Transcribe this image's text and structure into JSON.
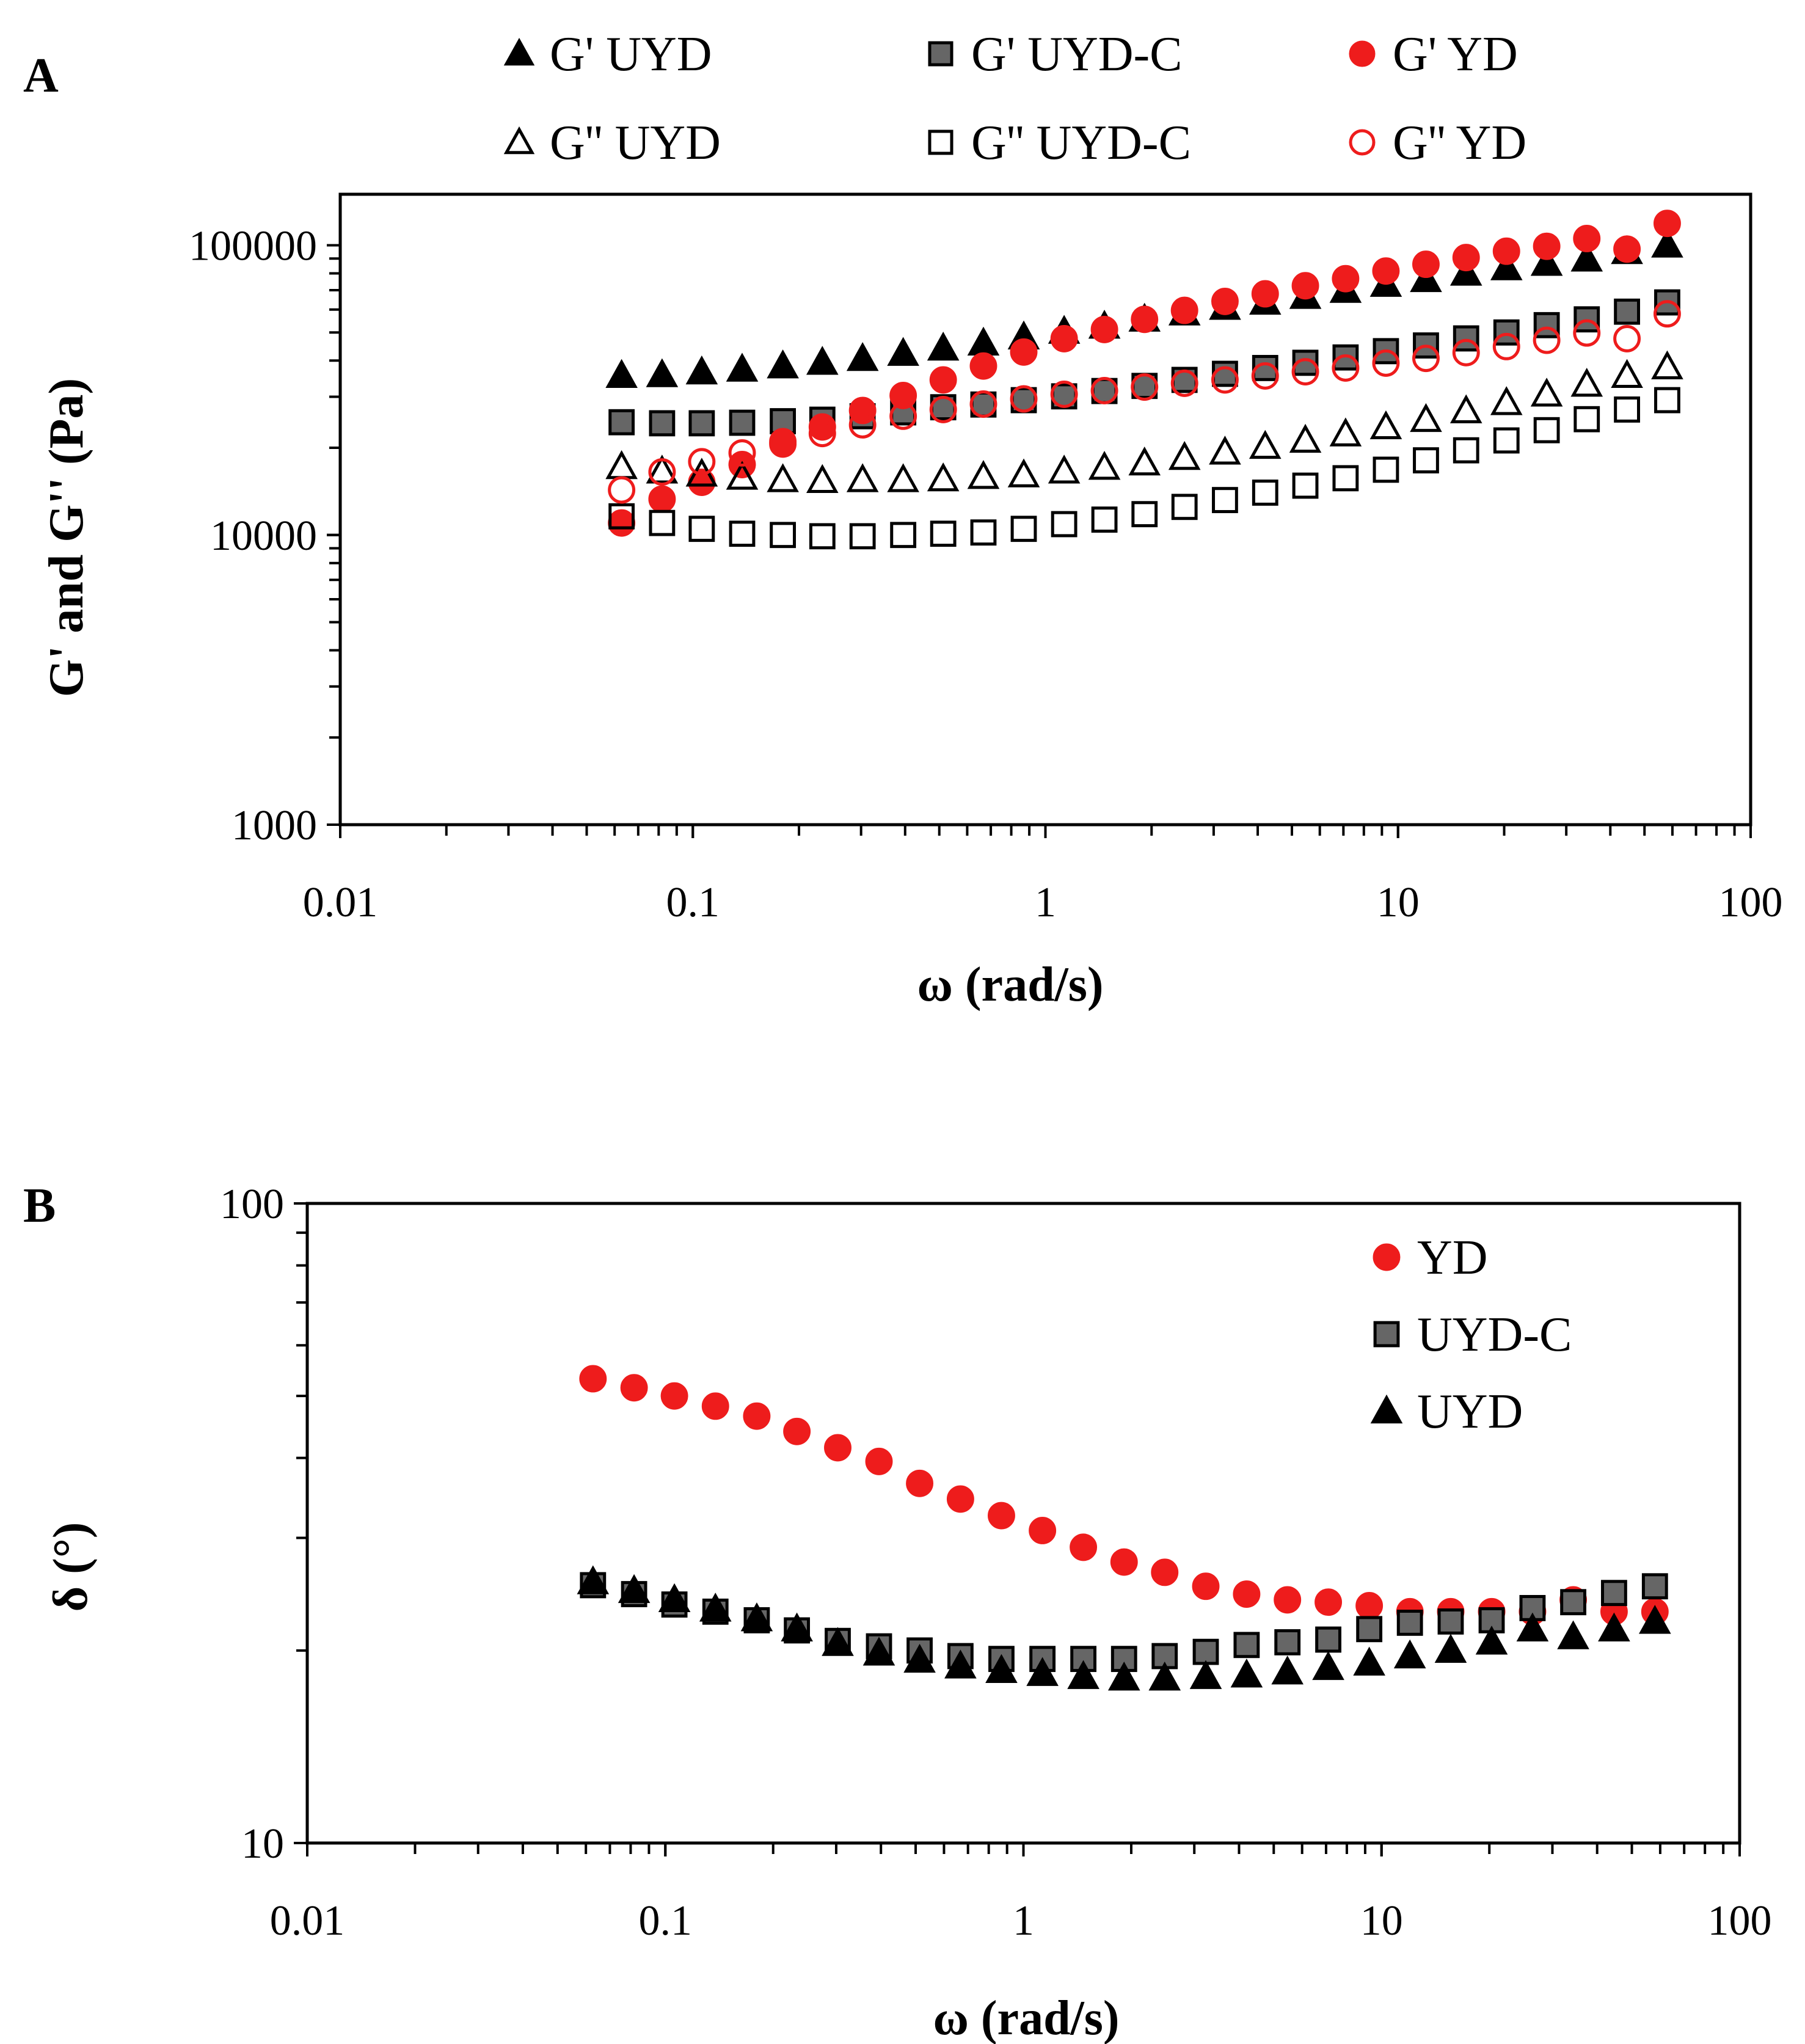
{
  "chart_data": [
    {
      "panel": "A",
      "type": "scatter",
      "xscale": "log",
      "yscale": "log",
      "xlabel": "ω (rad/s)",
      "ylabel": "G' and G'' (Pa)",
      "xlim": [
        0.01,
        100
      ],
      "ylim": [
        1000,
        150000
      ],
      "xticks": [
        "0.01",
        "0.1",
        "1",
        "10",
        "100"
      ],
      "yticks": [
        "1000",
        "10000",
        "100000"
      ],
      "legend_position": "top",
      "x": [
        0.0628,
        0.0818,
        0.106,
        0.138,
        0.18,
        0.233,
        0.303,
        0.395,
        0.513,
        0.667,
        0.868,
        1.13,
        1.47,
        1.91,
        2.48,
        3.23,
        4.2,
        5.46,
        7.1,
        9.24,
        12.0,
        15.6,
        20.3,
        26.4,
        34.3,
        44.6,
        58.0
      ],
      "series": [
        {
          "name": "G' UYD",
          "marker": "triangle",
          "fill": "#000000",
          "stroke": "#000000",
          "values": [
            35500,
            35700,
            36500,
            37300,
            38300,
            39400,
            40600,
            42300,
            44100,
            45900,
            48200,
            50400,
            52500,
            55500,
            58300,
            61000,
            63500,
            66500,
            69800,
            73200,
            76000,
            80000,
            83500,
            86500,
            89500,
            95000,
            100000
          ]
        },
        {
          "name": "G' UYD-C",
          "marker": "square",
          "fill": "#666666",
          "stroke": "#000000",
          "values": [
            24500,
            24300,
            24300,
            24400,
            24700,
            25000,
            25700,
            26500,
            27600,
            28200,
            29200,
            30100,
            31400,
            32700,
            34300,
            36000,
            37700,
            39300,
            41000,
            43100,
            45100,
            47700,
            50000,
            53000,
            55500,
            59000,
            63500
          ]
        },
        {
          "name": "G' YD",
          "marker": "circle",
          "fill": "#ee1c1c",
          "stroke": "#ee1c1c",
          "values": [
            11000,
            13300,
            15200,
            17500,
            20600,
            23600,
            26900,
            30300,
            34300,
            38300,
            42800,
            47600,
            51200,
            55500,
            59600,
            64000,
            68000,
            72500,
            76700,
            81500,
            86000,
            90700,
            95400,
            99200,
            105500,
            97000,
            119000
          ]
        },
        {
          "name": "G'' UYD",
          "marker": "triangle",
          "fill": "none",
          "stroke": "#000000",
          "values": [
            17200,
            16600,
            16200,
            15800,
            15500,
            15400,
            15500,
            15500,
            15600,
            15900,
            16100,
            16600,
            17100,
            17700,
            18500,
            19300,
            20200,
            21200,
            22300,
            23600,
            25000,
            26800,
            28600,
            30600,
            33100,
            35500,
            38000
          ]
        },
        {
          "name": "G'' UYD-C",
          "marker": "square",
          "fill": "none",
          "stroke": "#000000",
          "values": [
            11600,
            11000,
            10500,
            10100,
            10000,
            9900,
            9900,
            10000,
            10100,
            10200,
            10500,
            10900,
            11300,
            11800,
            12500,
            13200,
            14000,
            14800,
            15700,
            16800,
            18100,
            19600,
            21200,
            23000,
            25100,
            27100,
            29200
          ]
        },
        {
          "name": "G'' YD",
          "marker": "circle",
          "fill": "none",
          "stroke": "#ee1c1c",
          "values": [
            14300,
            16500,
            17900,
            19200,
            21000,
            22400,
            24000,
            25700,
            27100,
            28300,
            29500,
            30600,
            31500,
            32400,
            33400,
            34300,
            35400,
            36600,
            37700,
            39200,
            40700,
            42600,
            44700,
            47000,
            49800,
            47600,
            58000
          ]
        }
      ]
    },
    {
      "panel": "B",
      "type": "scatter",
      "xscale": "log",
      "yscale": "log",
      "xlabel": "ω (rad/s)",
      "ylabel": "δ (°)",
      "xlim": [
        0.01,
        100
      ],
      "ylim": [
        10,
        100
      ],
      "xticks": [
        "0.01",
        "0.1",
        "1",
        "10",
        "100"
      ],
      "yticks": [
        "10",
        "100"
      ],
      "legend_position": "top-right",
      "x": [
        0.0628,
        0.0818,
        0.106,
        0.138,
        0.18,
        0.233,
        0.303,
        0.395,
        0.513,
        0.667,
        0.868,
        1.13,
        1.47,
        1.91,
        2.48,
        3.23,
        4.2,
        5.46,
        7.1,
        9.24,
        12.0,
        15.6,
        20.3,
        26.4,
        34.3,
        44.6,
        58.0
      ],
      "series": [
        {
          "name": "YD",
          "marker": "circle",
          "fill": "#ee1c1c",
          "stroke": "#ee1c1c",
          "values": [
            53.2,
            51.5,
            50.0,
            48.2,
            46.5,
            44.0,
            41.5,
            39.5,
            36.5,
            34.5,
            32.5,
            30.8,
            29.0,
            27.5,
            26.5,
            25.2,
            24.5,
            24.0,
            23.8,
            23.5,
            23.0,
            23.0,
            23.0,
            23.0,
            24.0,
            23.0,
            23.0
          ]
        },
        {
          "name": "UYD-C",
          "marker": "square",
          "fill": "#666666",
          "stroke": "#000000",
          "values": [
            25.3,
            24.5,
            23.6,
            23.0,
            22.3,
            21.5,
            20.7,
            20.3,
            20.0,
            19.6,
            19.4,
            19.4,
            19.4,
            19.4,
            19.6,
            19.9,
            20.4,
            20.6,
            20.8,
            21.6,
            22.1,
            22.2,
            22.3,
            23.3,
            23.8,
            24.6,
            25.2
          ]
        },
        {
          "name": "UYD",
          "marker": "triangle",
          "fill": "#000000",
          "stroke": "#000000",
          "values": [
            25.6,
            24.8,
            24.0,
            23.2,
            22.4,
            21.6,
            20.5,
            19.8,
            19.3,
            18.9,
            18.6,
            18.4,
            18.2,
            18.1,
            18.1,
            18.2,
            18.3,
            18.5,
            18.8,
            19.1,
            19.6,
            20.0,
            20.6,
            21.6,
            21.0,
            21.6,
            22.2
          ]
        }
      ]
    }
  ]
}
